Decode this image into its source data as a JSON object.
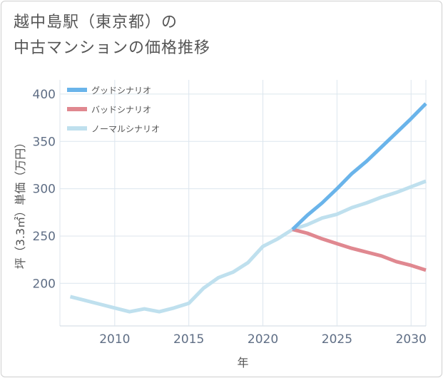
{
  "title_line1": "越中島駅（東京都）の",
  "title_line2": "中古マンションの価格推移",
  "chart_data": {
    "type": "line",
    "xlabel": "年",
    "ylabel": "坪（3.3㎡）単価（万円）",
    "xlim": [
      2006.3,
      2031
    ],
    "ylim": [
      155,
      415
    ],
    "xticks": [
      2010,
      2015,
      2020,
      2025,
      2030
    ],
    "yticks": [
      200,
      250,
      300,
      350,
      400
    ],
    "grid": true,
    "legend_position": "top-left",
    "series": [
      {
        "name": "グッドシナリオ",
        "color": "#6ab4ea",
        "x": [
          2022,
          2023,
          2024,
          2025,
          2026,
          2027,
          2028,
          2029,
          2030,
          2031
        ],
        "y": [
          257,
          272,
          285,
          300,
          316,
          329,
          344,
          359,
          374,
          390
        ]
      },
      {
        "name": "バッドシナリオ",
        "color": "#e08890",
        "x": [
          2022,
          2023,
          2024,
          2025,
          2026,
          2027,
          2028,
          2029,
          2030,
          2031
        ],
        "y": [
          257,
          253,
          247,
          242,
          237,
          233,
          229,
          223,
          219,
          214
        ]
      },
      {
        "name": "ノーマルシナリオ",
        "color": "#bfe0ee",
        "x": [
          2007,
          2008,
          2009,
          2010,
          2011,
          2012,
          2013,
          2014,
          2015,
          2016,
          2017,
          2018,
          2019,
          2020,
          2021,
          2022,
          2023,
          2024,
          2025,
          2026,
          2027,
          2028,
          2029,
          2030,
          2031
        ],
        "y": [
          186,
          182,
          178,
          174,
          170,
          173,
          170,
          174,
          179,
          195,
          206,
          212,
          222,
          239,
          247,
          257,
          262,
          269,
          273,
          280,
          285,
          291,
          296,
          302,
          308
        ]
      }
    ]
  }
}
